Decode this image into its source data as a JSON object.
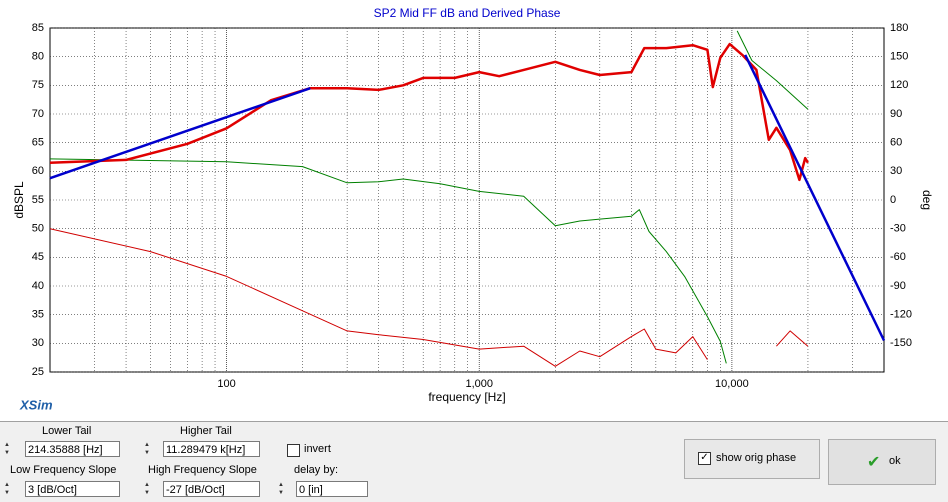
{
  "chart_data": {
    "type": "line",
    "title": "SP2 Mid FF dB and Derived Phase",
    "xlabel": "frequency [Hz]",
    "ylabel": "dBSPL",
    "y2label": "deg",
    "log_x": true,
    "grid": true,
    "xlim": [
      20,
      40000
    ],
    "ylim": [
      25,
      85
    ],
    "y2lim": [
      -180,
      180
    ],
    "xticks": [
      100,
      {
        "value": 1000,
        "label": "1,000"
      },
      {
        "value": 10000,
        "label": "10,000"
      }
    ],
    "xminor_ticks": [
      30,
      40,
      50,
      60,
      70,
      80,
      90,
      200,
      300,
      400,
      500,
      600,
      700,
      800,
      900,
      2000,
      3000,
      4000,
      5000,
      6000,
      7000,
      8000,
      9000,
      20000,
      30000
    ],
    "yticks": [
      25,
      30,
      35,
      40,
      45,
      50,
      55,
      60,
      65,
      70,
      75,
      80,
      85
    ],
    "y2ticks": [
      -150,
      -120,
      -90,
      -60,
      -30,
      0,
      30,
      60,
      90,
      120,
      150,
      180
    ],
    "series": [
      {
        "color": "#008000",
        "width": 1,
        "axis": "y2",
        "x": [
          20,
          100,
          200,
          300,
          400,
          500,
          700,
          1000,
          1500,
          2000,
          2500,
          3000,
          4000,
          4300,
          4700,
          5500,
          6500,
          8000,
          9000,
          9500,
          10000,
          10500,
          12000,
          15000,
          20000
        ],
        "values": [
          43,
          40,
          35,
          18,
          19,
          22,
          17,
          9,
          4,
          -27,
          -22,
          -20,
          -17,
          -10,
          -33,
          -54,
          -80,
          -122,
          -148,
          -171,
          null,
          177,
          146,
          125,
          95
        ]
      },
      {
        "color": "#d00000",
        "width": 1,
        "axis": "y2",
        "x": [
          20,
          50,
          100,
          200,
          300,
          400,
          600,
          1000,
          1500,
          2000,
          2500,
          3000,
          4000,
          4500,
          5000,
          6000,
          7000,
          8000,
          12000,
          15000,
          17000,
          20000
        ],
        "values": [
          -30,
          -54,
          -80,
          -116,
          -137,
          -141,
          -146,
          -156,
          -153,
          -174,
          -158,
          -164,
          -143,
          -135,
          -156,
          -160,
          -143,
          -167,
          null,
          -153,
          -137,
          -153
        ]
      },
      {
        "color": "#e00000",
        "width": 2.5,
        "x": [
          20,
          40,
          70,
          100,
          150,
          214,
          300,
          400,
          500,
          600,
          800,
          1000,
          1200,
          1500,
          2000,
          2500,
          3000,
          4000,
          4500,
          5500,
          7000,
          8000,
          8400,
          9000,
          9800,
          11000,
          12500,
          14000,
          15000,
          17000,
          18500,
          19500,
          20000
        ],
        "values": [
          61.5,
          62,
          64.8,
          67.5,
          72.4,
          74.5,
          74.5,
          74.2,
          75,
          76.3,
          76.3,
          77.3,
          76.6,
          77.7,
          79.1,
          77.7,
          76.8,
          77.3,
          81.5,
          81.5,
          82,
          81.2,
          74.7,
          79.8,
          82.2,
          80.3,
          77.7,
          65.5,
          67.6,
          63.7,
          58.5,
          62.3,
          61.5
        ]
      },
      {
        "color": "#0000cc",
        "width": 2.5,
        "x": [
          20,
          214.35888,
          1000,
          11289.479,
          40000
        ],
        "values": [
          58.8,
          74.5,
          null,
          80.3,
          30.5
        ]
      }
    ]
  },
  "logo": "XSim",
  "controls": {
    "lower_tail": {
      "label": "Lower Tail",
      "value": "214.35888 [Hz]"
    },
    "higher_tail": {
      "label": "Higher Tail",
      "value": "11.289479 k[Hz]"
    },
    "invert": {
      "label": "invert",
      "checked": false
    },
    "low_slope": {
      "label": "Low Frequency Slope",
      "value": "3 [dB/Oct]"
    },
    "high_slope": {
      "label": "High Frequency Slope",
      "value": "-27 [dB/Oct]"
    },
    "delay": {
      "label": "delay by:",
      "value": "0 [in]"
    },
    "show_orig_phase": {
      "label": "show orig phase",
      "checked": true
    },
    "ok": {
      "label": "ok"
    }
  }
}
